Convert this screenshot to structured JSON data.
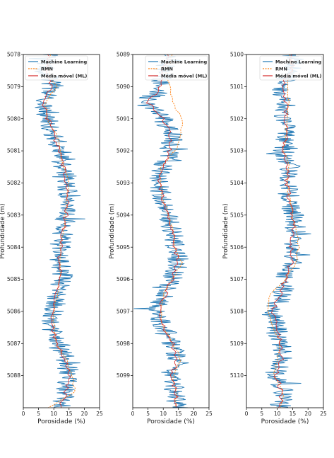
{
  "chart_data": [
    {
      "type": "line",
      "xlabel": "Porosidade (%)",
      "ylabel": "Profundidade (m)",
      "xlim": [
        0,
        25
      ],
      "ylim": [
        5078,
        5089
      ],
      "xticks": [
        "0",
        "5",
        "10",
        "15",
        "20",
        "25"
      ],
      "yticks": [
        "5078",
        "5079",
        "5080",
        "5081",
        "5082",
        "5083",
        "5084",
        "5085",
        "5086",
        "5087",
        "5088"
      ],
      "legend": [
        "Machine Learning",
        "RMN",
        "Média móvel (ML)"
      ],
      "legend_position": "top-left",
      "series": [
        {
          "name": "Machine Learning",
          "color": "#1f77b4",
          "depth": [
            5078.0,
            5078.5,
            5079.0,
            5079.5,
            5080.0,
            5080.5,
            5081.0,
            5081.5,
            5082.0,
            5082.5,
            5083.0,
            5083.5,
            5084.0,
            5084.5,
            5085.0,
            5085.5,
            5086.0,
            5086.5,
            5087.0,
            5087.5,
            5088.0,
            5088.5,
            5089.0
          ],
          "porosity": [
            8,
            7,
            10,
            6,
            8,
            10,
            12,
            13,
            14,
            15,
            14,
            13,
            12,
            12,
            13,
            11,
            10,
            9,
            11,
            14,
            15,
            14,
            12
          ]
        },
        {
          "name": "RMN",
          "color": "#ff7f0e",
          "depth": [
            5078.0,
            5078.5,
            5079.0,
            5079.5,
            5080.0,
            5080.5,
            5081.0,
            5081.5,
            5082.0,
            5082.5,
            5083.0,
            5083.5,
            5084.0,
            5084.5,
            5085.0,
            5085.5,
            5086.0,
            5086.5,
            5087.0,
            5087.5,
            5088.0,
            5088.5,
            5089.0
          ],
          "porosity": [
            9,
            8,
            11,
            7,
            8,
            11,
            12,
            13,
            15,
            14,
            14,
            13,
            12,
            12,
            12,
            11,
            10,
            10,
            11,
            14,
            16,
            17,
            8
          ]
        },
        {
          "name": "Média móvel (ML)",
          "color": "#d62728",
          "depth": [
            5078.0,
            5078.5,
            5079.0,
            5079.5,
            5080.0,
            5080.5,
            5081.0,
            5081.5,
            5082.0,
            5082.5,
            5083.0,
            5083.5,
            5084.0,
            5084.5,
            5085.0,
            5085.5,
            5086.0,
            5086.5,
            5087.0,
            5087.5,
            5088.0,
            5088.5,
            5089.0
          ],
          "porosity": [
            8,
            7.5,
            9.5,
            6.5,
            8,
            10,
            12,
            13,
            14,
            14.5,
            14,
            13,
            12,
            12,
            12.5,
            11,
            10,
            9.5,
            11,
            14,
            15,
            14,
            12
          ]
        }
      ]
    },
    {
      "type": "line",
      "xlabel": "Porosidade (%)",
      "ylabel": "Profundidade (m)",
      "xlim": [
        0,
        25
      ],
      "ylim": [
        5089,
        5100
      ],
      "xticks": [
        "0",
        "5",
        "10",
        "15",
        "20",
        "25"
      ],
      "yticks": [
        "5089",
        "5090",
        "5091",
        "5092",
        "5093",
        "5094",
        "5095",
        "5096",
        "5097",
        "5098",
        "5099"
      ],
      "legend": [
        "Machine Learning",
        "RMN",
        "Média móvel (ML)"
      ],
      "legend_position": "top-right",
      "series": [
        {
          "name": "Machine Learning",
          "color": "#1f77b4",
          "depth": [
            5089.0,
            5089.5,
            5090.0,
            5090.5,
            5091.0,
            5091.5,
            5092.0,
            5092.5,
            5093.0,
            5093.5,
            5094.0,
            5094.5,
            5095.0,
            5095.5,
            5096.0,
            5096.5,
            5097.0,
            5097.5,
            5098.0,
            5098.5,
            5099.0,
            5099.5,
            5100.0
          ],
          "porosity": [
            12,
            10,
            9,
            4,
            10,
            13,
            12,
            10,
            8,
            10,
            12,
            13,
            14,
            15,
            13,
            10,
            8,
            10,
            13,
            15,
            12,
            14,
            15
          ]
        },
        {
          "name": "RMN",
          "color": "#ff7f0e",
          "depth": [
            5089.0,
            5089.5,
            5090.0,
            5090.5,
            5091.0,
            5091.5,
            5092.0,
            5092.5,
            5093.0,
            5093.5,
            5094.0,
            5094.5,
            5095.0,
            5095.5,
            5096.0,
            5096.5,
            5097.0,
            5097.5,
            5098.0,
            5098.5,
            5099.0,
            5099.5,
            5100.0
          ],
          "porosity": [
            13,
            11,
            12,
            13,
            16,
            16,
            14,
            9,
            9,
            10,
            12,
            13,
            14,
            16,
            13,
            10,
            9,
            10,
            13,
            16,
            13,
            14,
            14
          ]
        },
        {
          "name": "Média móvel (ML)",
          "color": "#d62728",
          "depth": [
            5089.0,
            5089.5,
            5090.0,
            5090.5,
            5091.0,
            5091.5,
            5092.0,
            5092.5,
            5093.0,
            5093.5,
            5094.0,
            5094.5,
            5095.0,
            5095.5,
            5096.0,
            5096.5,
            5097.0,
            5097.5,
            5098.0,
            5098.5,
            5099.0,
            5099.5,
            5100.0
          ],
          "porosity": [
            11.5,
            10,
            9,
            5,
            10,
            12.5,
            12,
            10,
            8.5,
            10,
            12,
            13,
            14,
            14.5,
            13,
            10.5,
            8.5,
            10,
            13,
            14.5,
            12.5,
            14,
            14.5
          ]
        }
      ]
    },
    {
      "type": "line",
      "xlabel": "Porosidade (%)",
      "ylabel": "Profundidade (m)",
      "xlim": [
        0,
        25
      ],
      "ylim": [
        5100,
        5111
      ],
      "xticks": [
        "0",
        "5",
        "10",
        "15",
        "20",
        "25"
      ],
      "yticks": [
        "5100",
        "5101",
        "5102",
        "5103",
        "5104",
        "5105",
        "5106",
        "5107",
        "5108",
        "5109",
        "5110"
      ],
      "legend": [
        "Machine Learning",
        "RMN",
        "Média móvel (ML)"
      ],
      "legend_position": "top-right",
      "series": [
        {
          "name": "Machine Learning",
          "color": "#1f77b4",
          "depth": [
            5100.0,
            5100.5,
            5101.0,
            5101.5,
            5102.0,
            5102.5,
            5103.0,
            5103.5,
            5104.0,
            5104.5,
            5105.0,
            5105.5,
            5106.0,
            5106.5,
            5107.0,
            5107.5,
            5108.0,
            5108.5,
            5109.0,
            5109.5,
            5110.0,
            5110.5,
            5111.0
          ],
          "porosity": [
            15,
            16,
            10,
            13,
            12,
            13,
            12,
            14,
            13,
            14,
            15,
            16,
            14,
            15,
            12,
            12,
            8,
            10,
            11,
            12,
            9,
            12,
            11
          ]
        },
        {
          "name": "RMN",
          "color": "#ff7f0e",
          "depth": [
            5100.0,
            5100.5,
            5101.0,
            5101.5,
            5102.0,
            5102.5,
            5103.0,
            5103.5,
            5104.0,
            5104.5,
            5105.0,
            5105.5,
            5106.0,
            5106.5,
            5107.0,
            5107.5,
            5108.0,
            5108.5,
            5109.0,
            5109.5,
            5110.0,
            5110.5,
            5111.0
          ],
          "porosity": [
            14,
            15,
            13,
            14,
            13,
            13,
            12,
            14,
            13,
            14,
            15,
            16,
            17,
            16,
            13,
            7,
            7,
            9,
            11,
            10,
            9,
            12,
            11
          ]
        },
        {
          "name": "Média móvel (ML)",
          "color": "#d62728",
          "depth": [
            5100.0,
            5100.5,
            5101.0,
            5101.5,
            5102.0,
            5102.5,
            5103.0,
            5103.5,
            5104.0,
            5104.5,
            5105.0,
            5105.5,
            5106.0,
            5106.5,
            5107.0,
            5107.5,
            5108.0,
            5108.5,
            5109.0,
            5109.5,
            5110.0,
            5110.5,
            5111.0
          ],
          "porosity": [
            14.5,
            15,
            11,
            13,
            12.5,
            13,
            12,
            13.5,
            13,
            14,
            15,
            15.5,
            14.5,
            14.5,
            12.5,
            11,
            8.5,
            10,
            11,
            11.5,
            9.5,
            11.5,
            11
          ]
        }
      ]
    }
  ]
}
